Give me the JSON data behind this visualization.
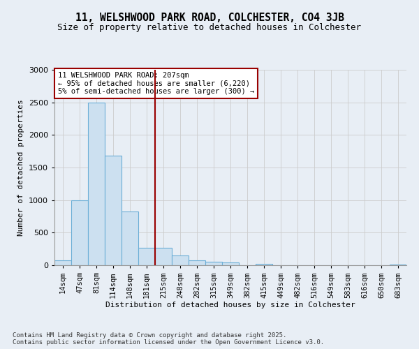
{
  "title_line1": "11, WELSHWOOD PARK ROAD, COLCHESTER, CO4 3JB",
  "title_line2": "Size of property relative to detached houses in Colchester",
  "xlabel": "Distribution of detached houses by size in Colchester",
  "ylabel": "Number of detached properties",
  "footnote": "Contains HM Land Registry data © Crown copyright and database right 2025.\nContains public sector information licensed under the Open Government Licence v3.0.",
  "bin_labels": [
    "14sqm",
    "47sqm",
    "81sqm",
    "114sqm",
    "148sqm",
    "181sqm",
    "215sqm",
    "248sqm",
    "282sqm",
    "315sqm",
    "349sqm",
    "382sqm",
    "415sqm",
    "449sqm",
    "482sqm",
    "516sqm",
    "549sqm",
    "583sqm",
    "616sqm",
    "650sqm",
    "683sqm"
  ],
  "bin_values": [
    80,
    1000,
    2500,
    1680,
    820,
    270,
    270,
    155,
    80,
    55,
    45,
    0,
    25,
    0,
    0,
    0,
    0,
    0,
    0,
    0,
    8
  ],
  "bar_color": "#cce0f0",
  "bar_edge_color": "#6baed6",
  "red_line_index": 6,
  "property_line_color": "#990000",
  "annotation_text": "11 WELSHWOOD PARK ROAD: 207sqm\n← 95% of detached houses are smaller (6,220)\n5% of semi-detached houses are larger (300) →",
  "annotation_box_color": "#ffffff",
  "annotation_box_edge_color": "#990000",
  "ylim": [
    0,
    3000
  ],
  "yticks": [
    0,
    500,
    1000,
    1500,
    2000,
    2500,
    3000
  ],
  "grid_color": "#cccccc",
  "bg_color": "#e8eef5",
  "plot_bg_color": "#e8eef5",
  "figsize": [
    6.0,
    5.0
  ],
  "dpi": 100
}
